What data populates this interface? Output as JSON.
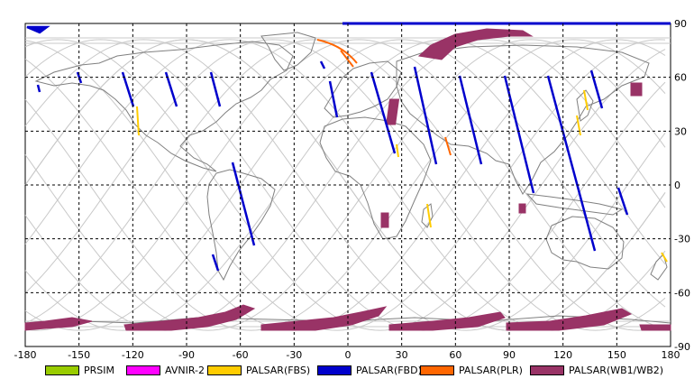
{
  "map": {
    "lon_ticks": [
      "-180",
      "-150",
      "-120",
      "-90",
      "-60",
      "-30",
      "0",
      "30",
      "60",
      "90",
      "120",
      "150",
      "180"
    ],
    "lat_ticks": [
      "90",
      "60",
      "30",
      "0",
      "-30",
      "-60",
      "-90"
    ],
    "lon_range": [
      -180,
      180
    ],
    "lat_range": [
      -90,
      90
    ],
    "grid": "dashed"
  },
  "legend": [
    {
      "label": "PRSIM",
      "color": "#99cc00"
    },
    {
      "label": "AVNIR-2",
      "color": "#ff00ff"
    },
    {
      "label": "PALSAR(FBS)",
      "color": "#ffcc00"
    },
    {
      "label": "PALSAR(FBD)",
      "color": "#0000cc"
    },
    {
      "label": "PALSAR(PLR)",
      "color": "#ff6600"
    },
    {
      "label": "PALSAR(WB1/WB2)",
      "color": "#993366"
    }
  ]
}
